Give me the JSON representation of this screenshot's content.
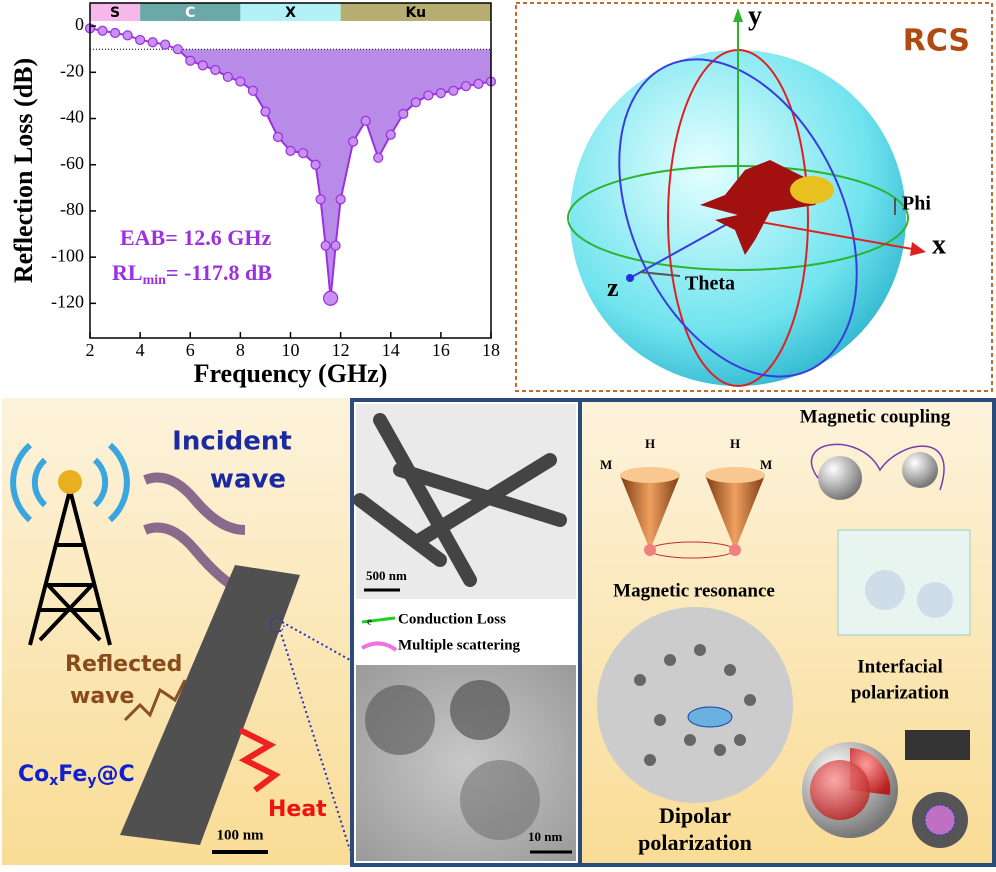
{
  "chart_data": {
    "type": "line",
    "x_label": "Frequency (GHz)",
    "y_label": "Reflection Loss (dB)",
    "x": [
      2,
      2.5,
      3,
      3.5,
      4,
      4.5,
      5,
      5.5,
      6,
      6.5,
      7,
      7.5,
      8,
      8.5,
      9,
      9.5,
      10,
      10.5,
      11,
      11.2,
      11.4,
      11.6,
      11.8,
      12,
      12.5,
      13,
      13.5,
      14,
      14.5,
      15,
      15.5,
      16,
      16.5,
      17,
      17.5,
      18
    ],
    "series": [
      {
        "name": "RL",
        "color": "#9b30e0",
        "values": [
          -1,
          -2,
          -3,
          -4,
          -6,
          -7,
          -8,
          -10,
          -15,
          -17,
          -19,
          -22,
          -24,
          -28,
          -37,
          -48,
          -54,
          -55,
          -60,
          -75,
          -95,
          -117.8,
          -95,
          -75,
          -50,
          -41,
          -57,
          -47,
          -38,
          -33,
          -30,
          -29,
          -28,
          -26,
          -25,
          -24
        ]
      }
    ],
    "fill_color": "#b98be8",
    "reference_line": -10,
    "bands": [
      {
        "name": "S",
        "from": 2,
        "to": 4,
        "color": "#f6b8ea"
      },
      {
        "name": "C",
        "from": 4,
        "to": 8,
        "color": "#6aa9a8"
      },
      {
        "name": "X",
        "from": 8,
        "to": 12,
        "color": "#b3f1f9"
      },
      {
        "name": "Ku",
        "from": 12,
        "to": 18,
        "color": "#b6ae70"
      }
    ],
    "xlim": [
      2,
      18
    ],
    "xticks": [
      2,
      4,
      6,
      8,
      10,
      12,
      14,
      16,
      18
    ],
    "ylim": [
      -135,
      10
    ],
    "yticks": [
      0,
      -20,
      -40,
      -60,
      -80,
      -100,
      -120
    ],
    "annotations": {
      "eab": "EAB= 12.6 GHz",
      "rl": "RL",
      "rl_sub": "min",
      "rl_value": "= -117.8 dB"
    }
  },
  "rcs": {
    "title": "RCS",
    "axis_y": "y",
    "axis_x": "x",
    "axis_z": "z",
    "theta": "Theta",
    "phi": "Phi"
  },
  "incident": {
    "title_1": "Incident",
    "title_2": "wave",
    "reflected_1": "Reflected",
    "reflected_2": "wave",
    "heat": "Heat",
    "formula": {
      "co": "Co",
      "x": "x",
      "fe": "Fe",
      "y": "y",
      "c": "@C"
    },
    "scale": "100 nm"
  },
  "tem": {
    "scale_top": "500 nm",
    "legend_1": "Conduction Loss",
    "legend_2": "Multiple scattering",
    "scale_bottom": "10 nm",
    "electron": "e"
  },
  "mechanisms": {
    "coupling": "Magnetic coupling",
    "resonance": "Magnetic resonance",
    "m_left": "M",
    "h_left": "H",
    "h_right": "H",
    "m_right": "M",
    "interfacial_1": "Interfacial",
    "interfacial_2": "polarization",
    "dipolar_1": "Dipolar",
    "dipolar_2": "polarization"
  }
}
